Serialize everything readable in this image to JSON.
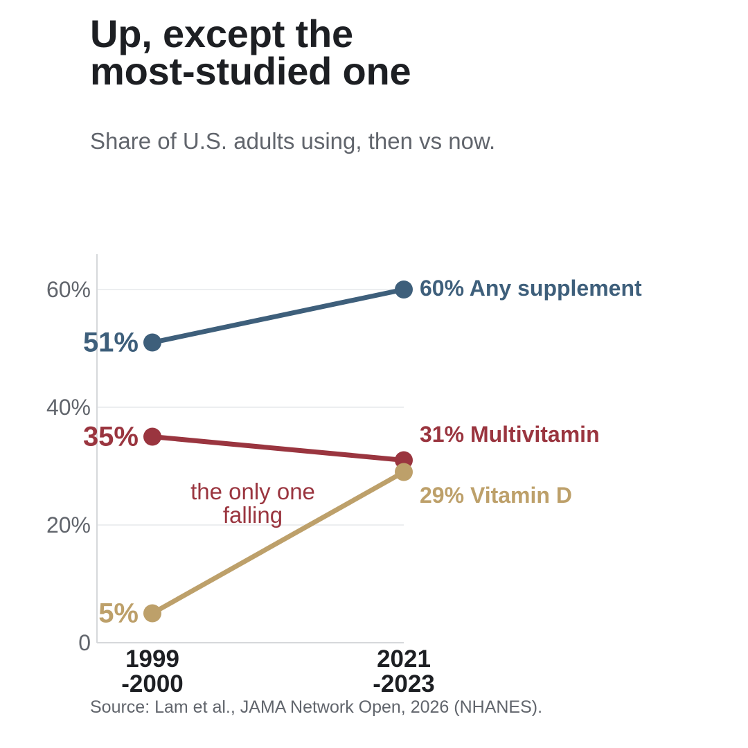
{
  "header": {
    "title_line1": "Up, except the",
    "title_line2": "most-studied one",
    "subtitle": "Share of U.S. adults using, then vs now."
  },
  "footer": {
    "source": "Source: Lam et al., JAMA Network Open, 2026 (NHANES)."
  },
  "chart_data": {
    "type": "line",
    "title": "Up, except the most-studied one",
    "subtitle": "Share of U.S. adults using, then vs now.",
    "x": [
      [
        "1999",
        "-2000"
      ],
      [
        "2021",
        "-2023"
      ]
    ],
    "ylim": [
      0,
      66
    ],
    "yticks": [
      0,
      20,
      40,
      60
    ],
    "ytick_labels": [
      "0",
      "20%",
      "40%",
      "60%"
    ],
    "grid": true,
    "legend": "direct labels at line ends",
    "series": [
      {
        "name": "Any supplement",
        "values": [
          51,
          60
        ],
        "start_label": "51%",
        "end_label": "60% Any supplement",
        "color": "#3e5f7b"
      },
      {
        "name": "Multivitamin",
        "values": [
          35,
          31
        ],
        "start_label": "35%",
        "end_label": "31% Multivitamin",
        "color": "#9a353f"
      },
      {
        "name": "Vitamin D",
        "values": [
          5,
          29
        ],
        "start_label": "5%",
        "end_label": "29% Vitamin D",
        "color": "#bda06a"
      }
    ],
    "annotations": [
      {
        "text_lines": [
          "the only one",
          "falling"
        ],
        "series": "Multivitamin",
        "color": "#9a353f"
      }
    ],
    "colors": {
      "text": "#1d1f23",
      "muted": "#61656c",
      "grid": "#eceef0",
      "axis": "#d6d8db"
    }
  }
}
